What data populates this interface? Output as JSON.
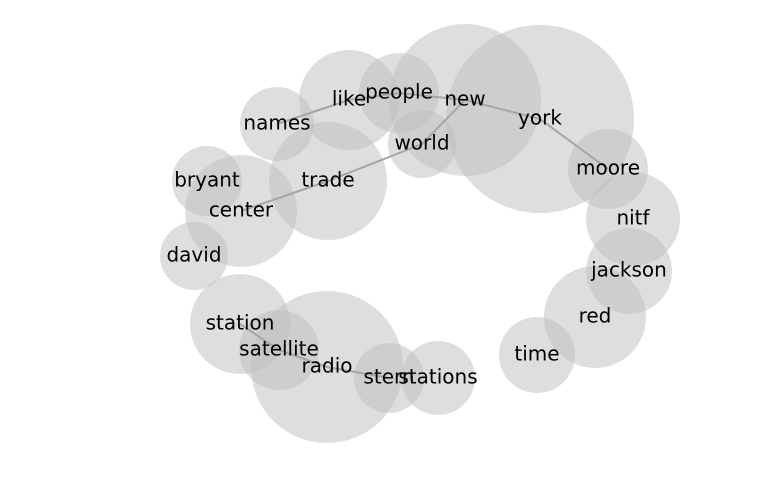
{
  "colors": {
    "bubble": "#bdbdbd",
    "edge": "#a6a6a6",
    "text": "#000000",
    "background": "#ffffff"
  },
  "nodes": [
    {
      "id": "york",
      "label": "york"
    },
    {
      "id": "new",
      "label": "new"
    },
    {
      "id": "world",
      "label": "world"
    },
    {
      "id": "people",
      "label": "people"
    },
    {
      "id": "like",
      "label": "like"
    },
    {
      "id": "names",
      "label": "names"
    },
    {
      "id": "trade",
      "label": "trade"
    },
    {
      "id": "bryant",
      "label": "bryant"
    },
    {
      "id": "center",
      "label": "center"
    },
    {
      "id": "david",
      "label": "david"
    },
    {
      "id": "moore",
      "label": "moore"
    },
    {
      "id": "nitf",
      "label": "nitf"
    },
    {
      "id": "jackson",
      "label": "jackson"
    },
    {
      "id": "red",
      "label": "red"
    },
    {
      "id": "time",
      "label": "time"
    },
    {
      "id": "station",
      "label": "station"
    },
    {
      "id": "satellite",
      "label": "satellite"
    },
    {
      "id": "radio",
      "label": "radio"
    },
    {
      "id": "stern",
      "label": "stern"
    },
    {
      "id": "stations",
      "label": "stations"
    }
  ],
  "edges": [
    [
      "new",
      "york"
    ],
    [
      "new",
      "world"
    ],
    [
      "new",
      "people"
    ],
    [
      "people",
      "like"
    ],
    [
      "like",
      "names"
    ],
    [
      "world",
      "trade"
    ],
    [
      "trade",
      "center"
    ],
    [
      "york",
      "moore"
    ],
    [
      "station",
      "satellite"
    ],
    [
      "satellite",
      "radio"
    ],
    [
      "radio",
      "stern"
    ]
  ]
}
